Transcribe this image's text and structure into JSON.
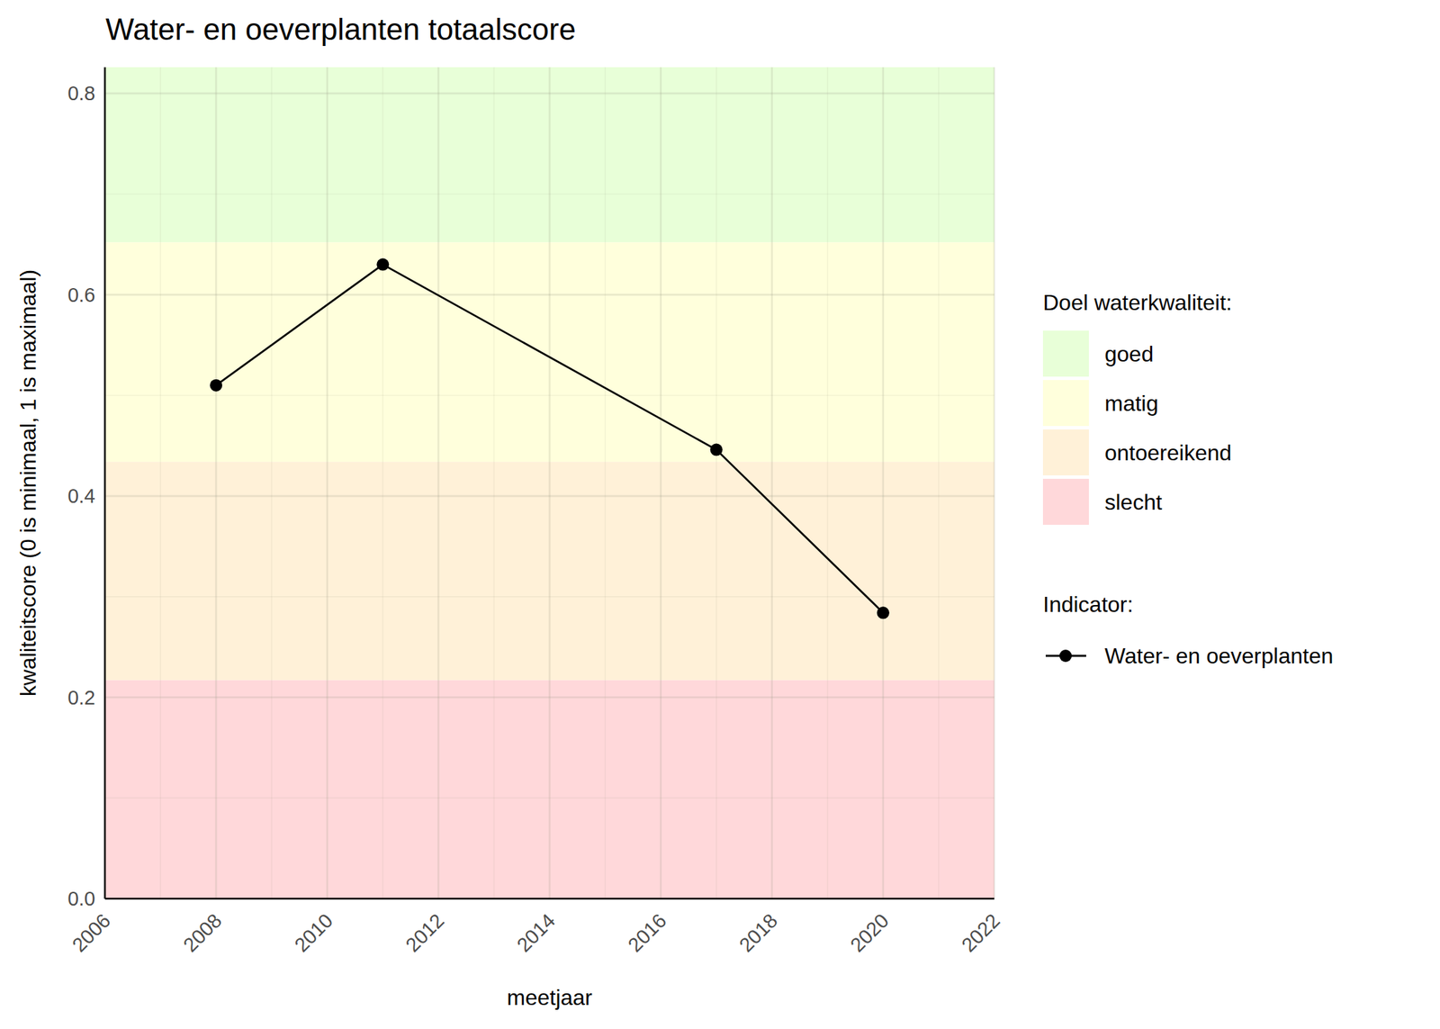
{
  "chart_data": {
    "type": "line",
    "title": "Water- en oeverplanten totaalscore",
    "x_label": "meetjaar",
    "y_label": "kwaliteitscore (0 is minimaal, 1 is maximaal)",
    "x": [
      2008,
      2011,
      2017,
      2020
    ],
    "series": [
      {
        "name": "Water- en oeverplanten",
        "color": "#000000",
        "marker": "circle",
        "line_style": "solid",
        "values": [
          0.51,
          0.63,
          0.446,
          0.284
        ]
      }
    ],
    "xlim": [
      2006,
      2022
    ],
    "xticks": [
      2006,
      2008,
      2010,
      2012,
      2014,
      2016,
      2018,
      2020,
      2022
    ],
    "ylim": [
      0,
      0.826
    ],
    "yticks": [
      {
        "value": 0,
        "label": "0.0"
      },
      0.2,
      0.4,
      0.6,
      0.8
    ],
    "grid": true,
    "legend": "right",
    "bands_title": "Doel waterkwaliteit:",
    "series_title": "Indicator:",
    "bands": [
      {
        "name": "goed",
        "from": 0.652,
        "to": 0.826,
        "color": "#e8ffd8"
      },
      {
        "name": "matig",
        "from": 0.434,
        "to": 0.652,
        "color": "#ffffdc"
      },
      {
        "name": "ontoereikend",
        "from": 0.217,
        "to": 0.434,
        "color": "#fff1d8"
      },
      {
        "name": "slecht",
        "from": 0,
        "to": 0.217,
        "color": "#ffd8da"
      }
    ]
  }
}
